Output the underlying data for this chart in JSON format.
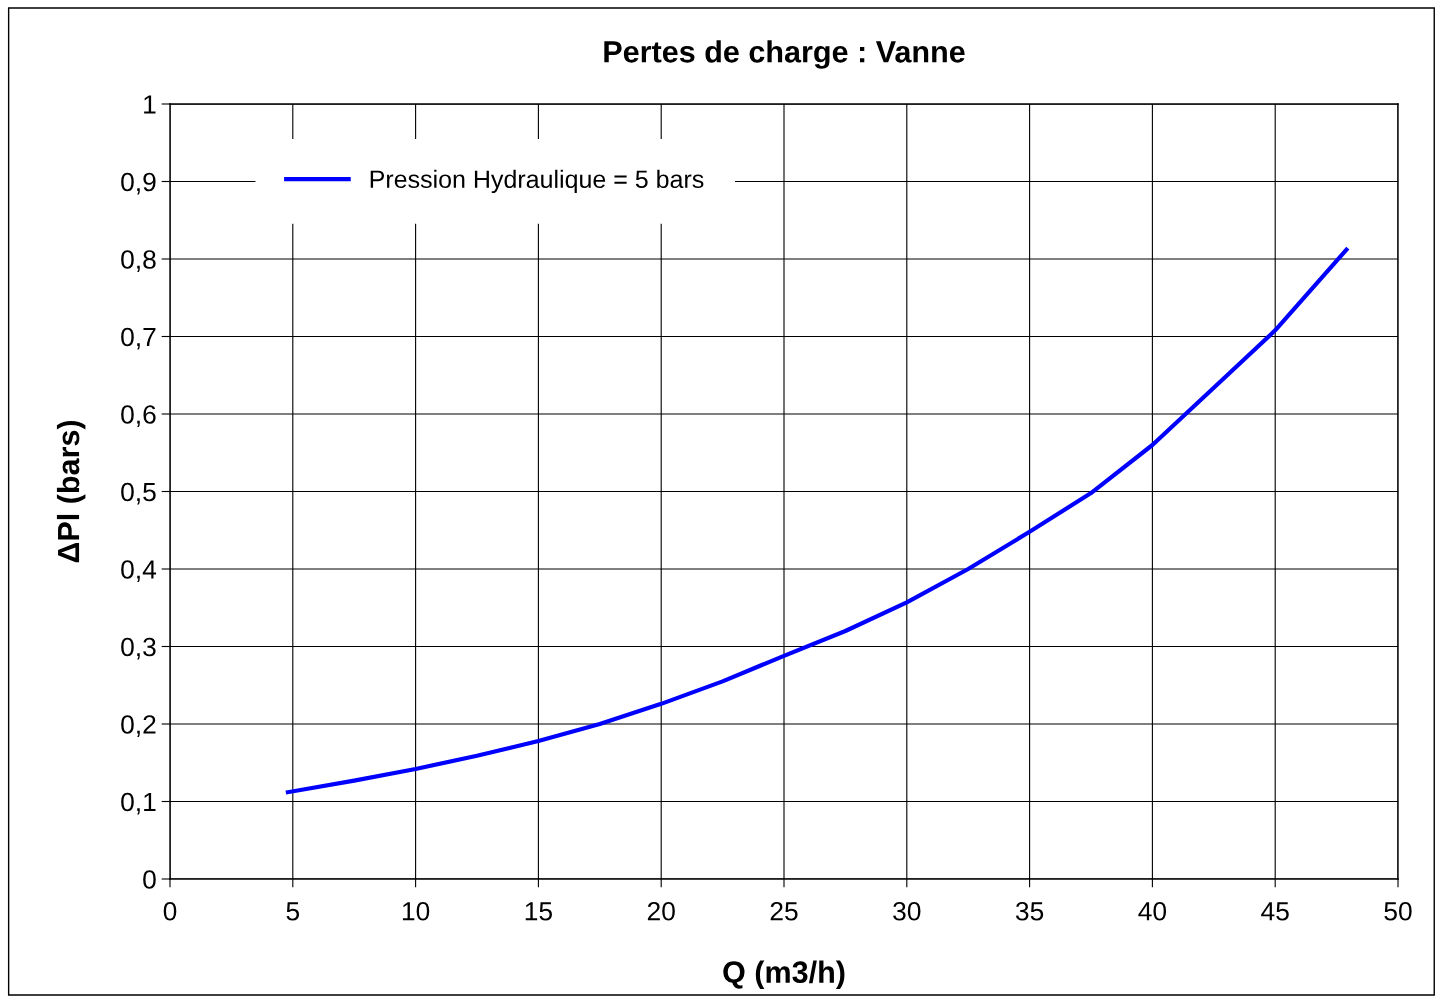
{
  "chart_data": {
    "type": "line",
    "title": "Pertes de charge : Vanne",
    "xlabel": "Q (m3/h)",
    "ylabel": "ΔPl (bars)",
    "series": [
      {
        "name": "Pression Hydraulique = 5 bars",
        "color": "#0000ff",
        "x": [
          4.8,
          7.5,
          10,
          12.5,
          15,
          17.5,
          20,
          22.5,
          25,
          27.5,
          30,
          32.5,
          35,
          37.5,
          40,
          42.5,
          45,
          47.9
        ],
        "values": [
          0.112,
          0.127,
          0.142,
          0.159,
          0.178,
          0.2,
          0.226,
          0.255,
          0.288,
          0.32,
          0.357,
          0.4,
          0.448,
          0.498,
          0.56,
          0.634,
          0.708,
          0.812
        ]
      }
    ],
    "xlim": [
      0,
      50
    ],
    "xticks": [
      0,
      5,
      10,
      15,
      20,
      25,
      30,
      35,
      40,
      45,
      50
    ],
    "ylim": [
      0,
      1
    ],
    "yticks": [
      0,
      {
        "value": 0.1,
        "label": "0,1"
      },
      {
        "value": 0.2,
        "label": "0,2"
      },
      {
        "value": 0.3,
        "label": "0,3"
      },
      {
        "value": 0.4,
        "label": "0,4"
      },
      {
        "value": 0.5,
        "label": "0,5"
      },
      {
        "value": 0.6,
        "label": "0,6"
      },
      {
        "value": 0.7,
        "label": "0,7"
      },
      {
        "value": 0.8,
        "label": "0,8"
      },
      {
        "value": 0.9,
        "label": "0,9"
      },
      1
    ],
    "grid": true,
    "legend": "top left",
    "line_style": "solid"
  }
}
